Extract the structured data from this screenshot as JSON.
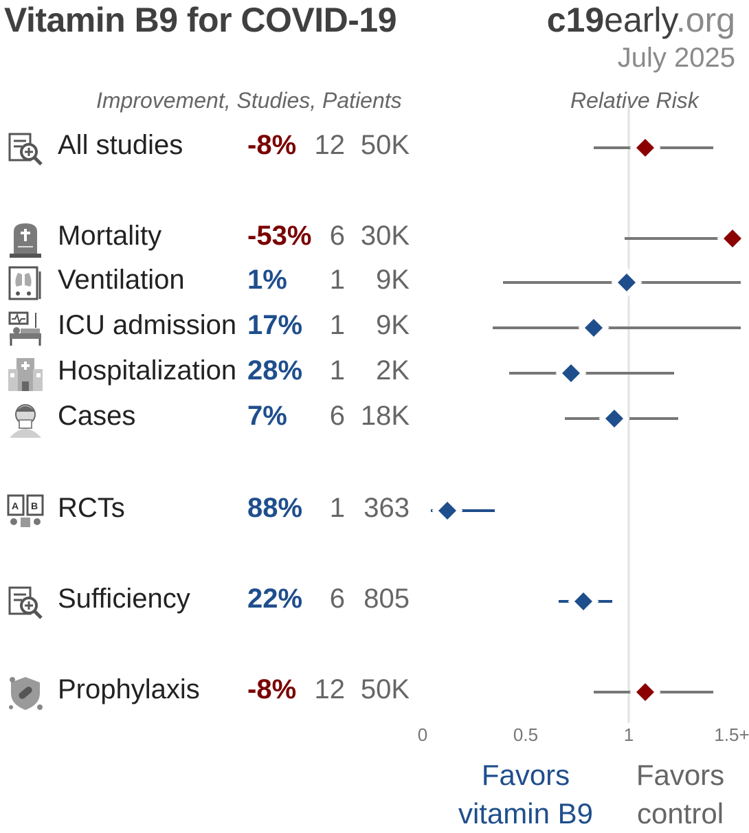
{
  "header": {
    "title": "Vitamin B9 for COVID-19",
    "brand_bold": "c19",
    "brand_mid": "early",
    "brand_org": ".org",
    "date": "July 2025",
    "columns_label": "Improvement, Studies, Patients",
    "rr_label": "Relative Risk"
  },
  "rows": [
    {
      "label": "All studies",
      "improvement": "-8%",
      "studies": "12",
      "patients": "50K",
      "icon": "study-icon"
    },
    {
      "label": "Mortality",
      "improvement": "-53%",
      "studies": "6",
      "patients": "30K",
      "icon": "tombstone-icon"
    },
    {
      "label": "Ventilation",
      "improvement": "1%",
      "studies": "1",
      "patients": "9K",
      "icon": "ventilator-icon"
    },
    {
      "label": "ICU admission",
      "improvement": "17%",
      "studies": "1",
      "patients": "9K",
      "icon": "icu-bed-icon"
    },
    {
      "label": "Hospitalization",
      "improvement": "28%",
      "studies": "1",
      "patients": "2K",
      "icon": "hospital-icon"
    },
    {
      "label": "Cases",
      "improvement": "7%",
      "studies": "6",
      "patients": "18K",
      "icon": "sick-person-icon"
    },
    {
      "label": "RCTs",
      "improvement": "88%",
      "studies": "1",
      "patients": "363",
      "icon": "rct-icon"
    },
    {
      "label": "Sufficiency",
      "improvement": "22%",
      "studies": "6",
      "patients": "805",
      "icon": "study-icon"
    },
    {
      "label": "Prophylaxis",
      "improvement": "-8%",
      "studies": "12",
      "patients": "50K",
      "icon": "shield-virus-icon"
    }
  ],
  "chart_data": {
    "type": "forest",
    "xlabel": "Relative Risk",
    "xlim": [
      0,
      1.5
    ],
    "x_ticks": [
      "0",
      "0.5",
      "1",
      "1.5+"
    ],
    "x_tick_values": [
      0,
      0.5,
      1,
      1.5
    ],
    "reference_line": 1,
    "series": [
      {
        "name": "All studies",
        "rr": 1.08,
        "ci_low": 0.83,
        "ci_high": 1.41,
        "color": "#8b0000"
      },
      {
        "name": "Mortality",
        "rr": 1.53,
        "ci_low": 0.98,
        "ci_high": 1.6,
        "color": "#8b0000"
      },
      {
        "name": "Ventilation",
        "rr": 0.99,
        "ci_low": 0.39,
        "ci_high": 1.6,
        "color": "#1f4e8c"
      },
      {
        "name": "ICU admission",
        "rr": 0.83,
        "ci_low": 0.34,
        "ci_high": 1.6,
        "color": "#1f4e8c"
      },
      {
        "name": "Hospitalization",
        "rr": 0.72,
        "ci_low": 0.42,
        "ci_high": 1.22,
        "color": "#1f4e8c"
      },
      {
        "name": "Cases",
        "rr": 0.93,
        "ci_low": 0.69,
        "ci_high": 1.24,
        "color": "#1f4e8c"
      },
      {
        "name": "RCTs",
        "rr": 0.12,
        "ci_low": 0.04,
        "ci_high": 0.35,
        "color": "#1f4e8c"
      },
      {
        "name": "Sufficiency",
        "rr": 0.78,
        "ci_low": 0.66,
        "ci_high": 0.92,
        "color": "#1f4e8c"
      },
      {
        "name": "Prophylaxis",
        "rr": 1.08,
        "ci_low": 0.83,
        "ci_high": 1.41,
        "color": "#8b0000"
      }
    ],
    "favors_left": "Favors vitamin B9",
    "favors_right": "Favors control"
  }
}
